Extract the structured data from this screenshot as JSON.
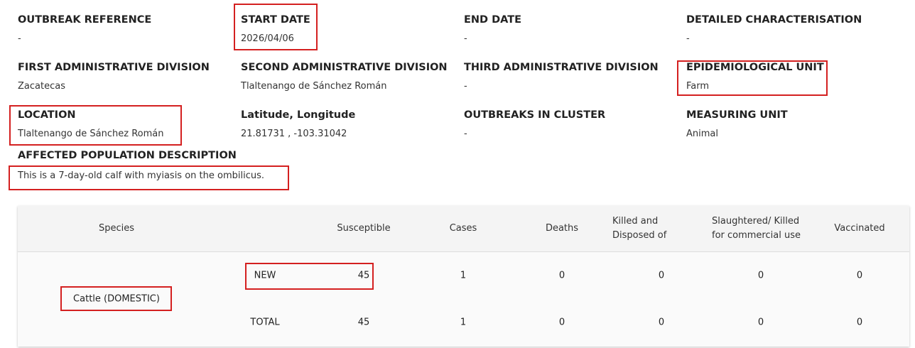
{
  "fields": [
    {
      "label": "OUTBREAK REFERENCE",
      "value": "-"
    },
    {
      "label": "START DATE",
      "value": "2026/04/06"
    },
    {
      "label": "END DATE",
      "value": "-"
    },
    {
      "label": "DETAILED CHARACTERISATION",
      "value": "-"
    },
    {
      "label": "FIRST ADMINISTRATIVE DIVISION",
      "value": "Zacatecas"
    },
    {
      "label": "SECOND ADMINISTRATIVE DIVISION",
      "value": "Tlaltenango de Sánchez Román"
    },
    {
      "label": "THIRD ADMINISTRATIVE DIVISION",
      "value": "-"
    },
    {
      "label": "EPIDEMIOLOGICAL UNIT",
      "value": "Farm"
    },
    {
      "label": "LOCATION",
      "value": "Tlaltenango de Sánchez Román"
    },
    {
      "label": "Latitude, Longitude",
      "value": "21.81731 , -103.31042"
    },
    {
      "label": "OUTBREAKS IN CLUSTER",
      "value": "-"
    },
    {
      "label": "MEASURING UNIT",
      "value": "Animal"
    }
  ],
  "affected_population": {
    "label": "AFFECTED POPULATION DESCRIPTION",
    "value": "This is a 7-day-old calf with myiasis on the ombilicus."
  },
  "table": {
    "headers": [
      "Species",
      "Susceptible",
      "Cases",
      "Deaths",
      "Killed and Disposed of",
      "Slaughtered/ Killed for commercial use",
      "Vaccinated"
    ],
    "species": "Cattle (DOMESTIC)",
    "rows": [
      {
        "label": "NEW",
        "values": [
          45,
          1,
          0,
          0,
          0,
          0
        ]
      },
      {
        "label": "TOTAL",
        "values": [
          45,
          1,
          0,
          0,
          0,
          0
        ]
      }
    ]
  }
}
